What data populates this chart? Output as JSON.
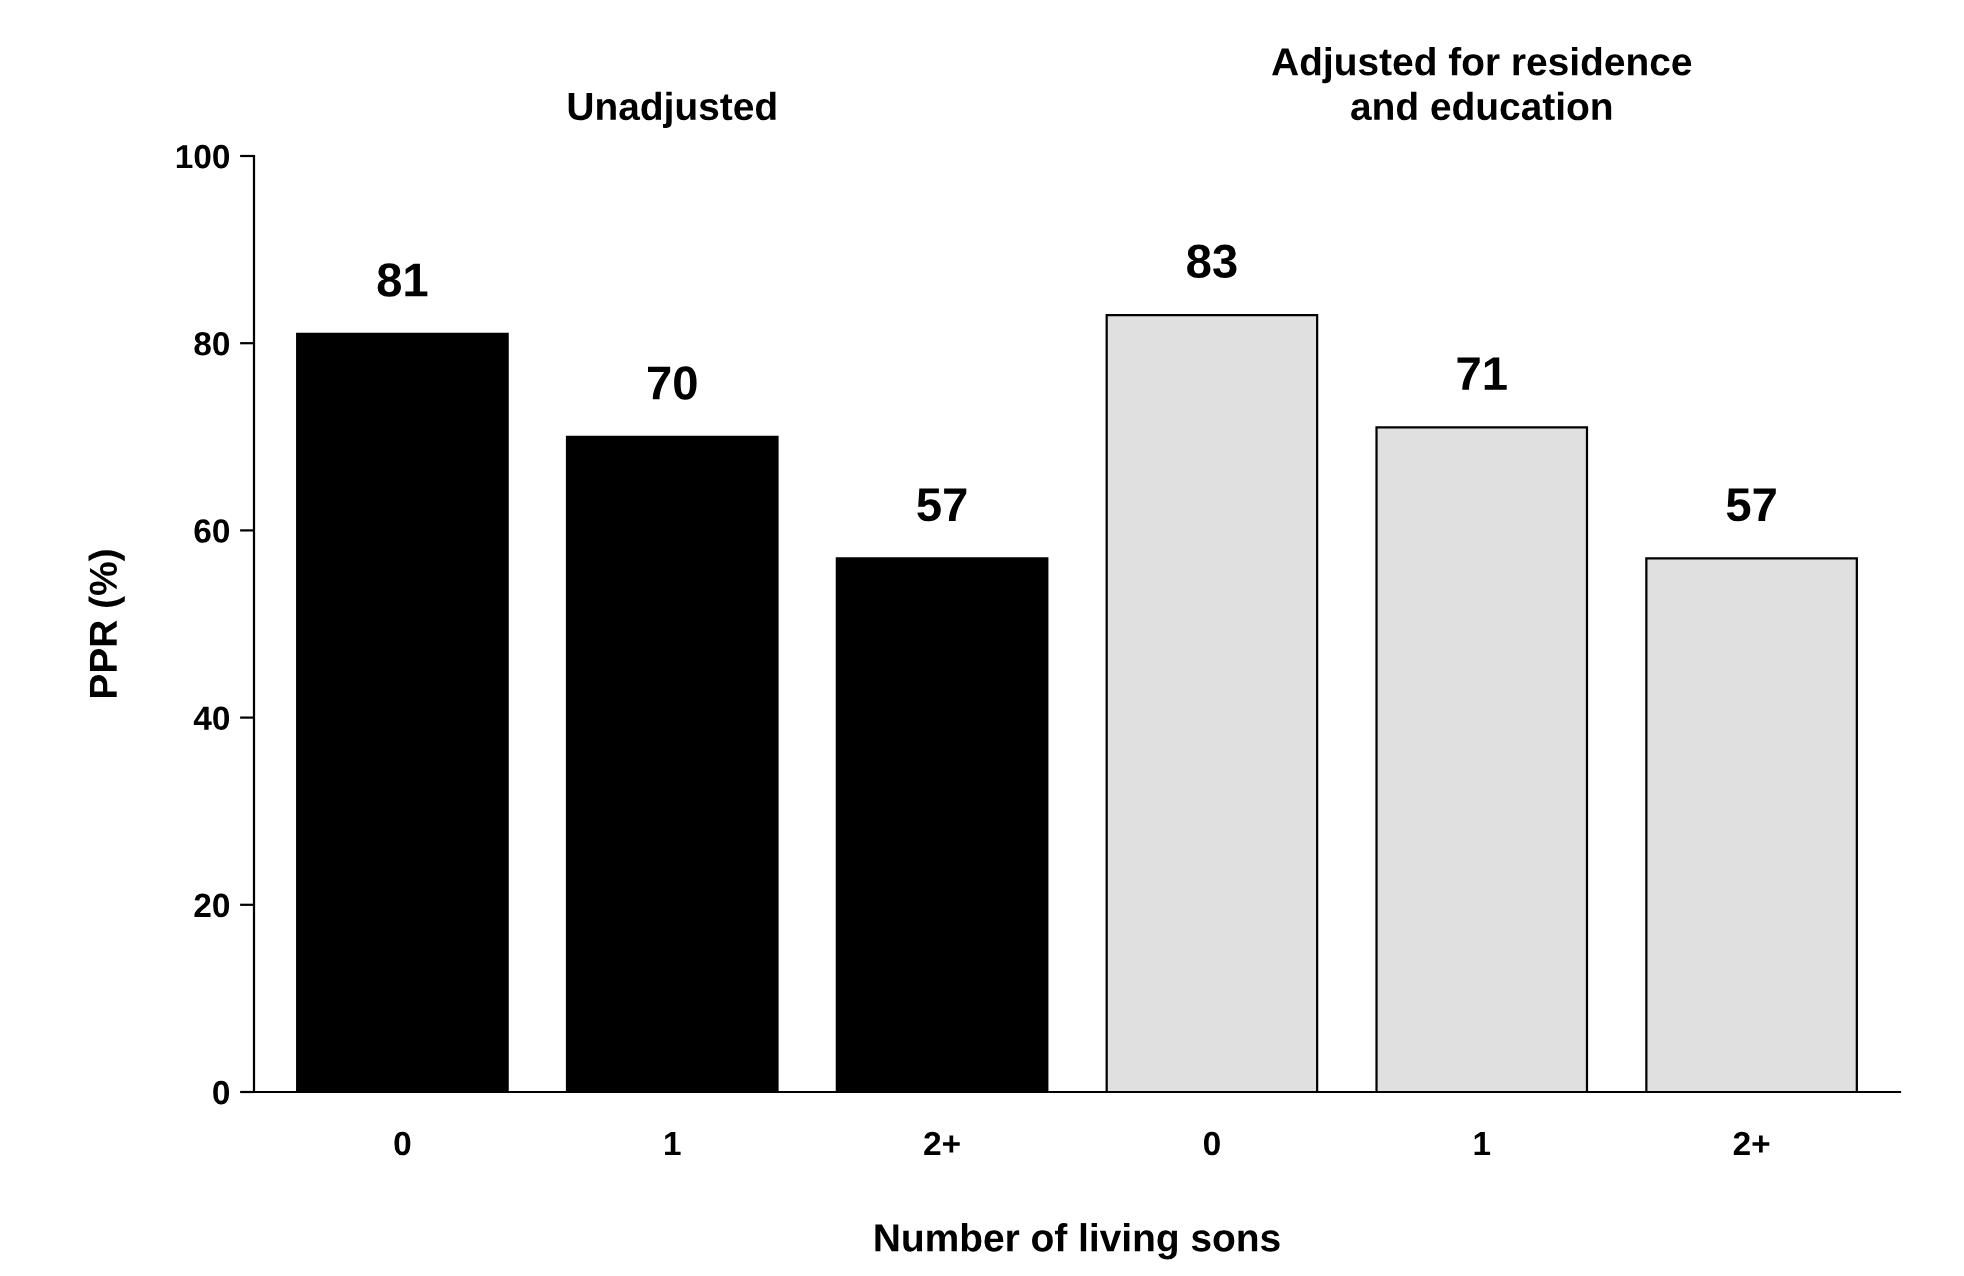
{
  "chart_data": {
    "type": "bar",
    "categories": [
      "0",
      "1",
      "2+",
      "0",
      "1",
      "2+"
    ],
    "values": [
      81,
      70,
      57,
      83,
      71,
      57
    ],
    "colors": [
      "#000000",
      "#000000",
      "#000000",
      "#e0e0e0",
      "#e0e0e0",
      "#e0e0e0"
    ],
    "data_labels": true,
    "xlabel": "Number of living sons",
    "ylabel": "PPR (%)",
    "ylim": [
      0,
      100
    ],
    "yticks": [
      0,
      20,
      40,
      60,
      80,
      100
    ],
    "annotations": [
      "Unadjusted",
      "Adjusted for residence\nand education"
    ],
    "grid": false,
    "legend": false
  }
}
